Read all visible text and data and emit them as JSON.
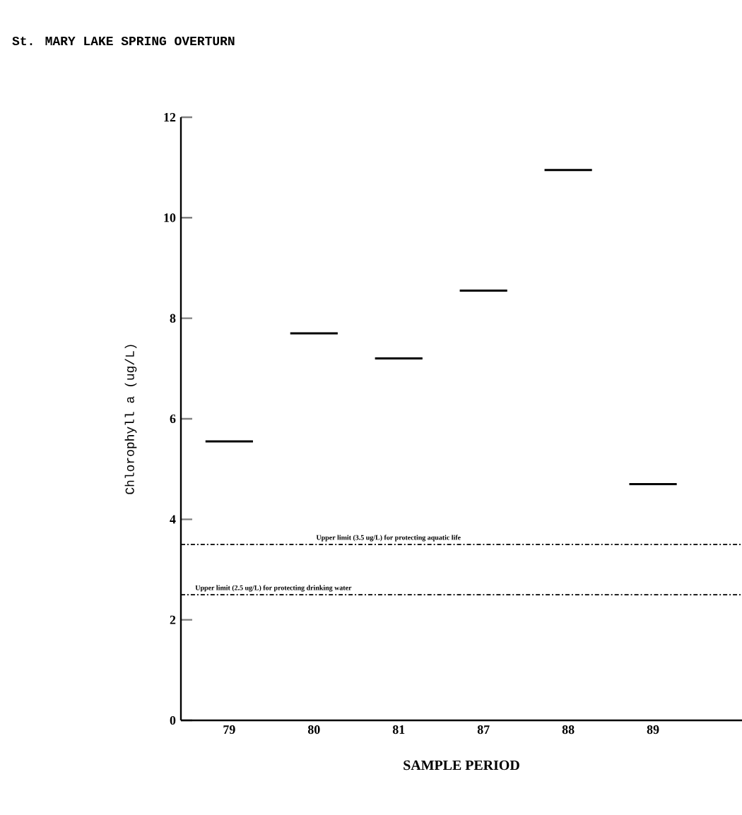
{
  "chart_data": {
    "type": "box",
    "title": "St. MARY LAKE SPRING OVERTURN",
    "xlabel": "SAMPLE PERIOD",
    "ylabel": "Chlorophyll a (ug/L)",
    "categories": [
      "79",
      "80",
      "81",
      "87",
      "88",
      "89"
    ],
    "boxes": [
      {
        "low": 5.55,
        "q1": 5.55,
        "median": 5.55,
        "q3": 5.55,
        "high": 5.55
      },
      {
        "low": 7.7,
        "q1": 7.7,
        "median": 7.7,
        "q3": 7.7,
        "high": 7.7
      },
      {
        "low": 7.2,
        "q1": 7.2,
        "median": 7.2,
        "q3": 7.2,
        "high": 7.2
      },
      {
        "low": 8.55,
        "q1": 8.55,
        "median": 8.55,
        "q3": 8.55,
        "high": 8.55
      },
      {
        "low": 10.95,
        "q1": 10.95,
        "median": 10.95,
        "q3": 10.95,
        "high": 10.95
      },
      {
        "low": 4.7,
        "q1": 4.7,
        "median": 4.7,
        "q3": 4.7,
        "high": 4.7
      }
    ],
    "color": "#000000",
    "ylim": [
      0,
      12
    ],
    "yticks": [
      0,
      2,
      4,
      6,
      8,
      10,
      12
    ],
    "ref_lines": [
      {
        "axis": "y",
        "value": 3.5,
        "label": "Upper limit (3.5 ug/L) for protecting aquatic life",
        "line_style": "dashed",
        "color": "#000000"
      },
      {
        "axis": "y",
        "value": 2.5,
        "label": "Upper limit (2.5 ug/L) for protecting drinking water",
        "line_style": "dashed",
        "color": "#000000"
      }
    ]
  }
}
